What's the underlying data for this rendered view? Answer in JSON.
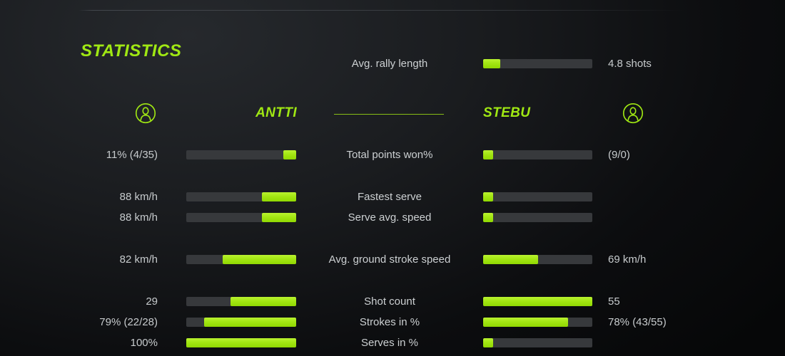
{
  "accent_color": "#a0e813",
  "track_color": "#37393c",
  "title": "STATISTICS",
  "avg_rally": {
    "label": "Avg. rally length",
    "value": "4.8 shots",
    "fill_pct": 16
  },
  "players": {
    "left_name": "ANTTI",
    "right_name": "STEBU"
  },
  "rows": [
    {
      "label": "Total points won%",
      "left_value": "11% (4/35)",
      "left_fill": 12,
      "right_value": "(9/0)",
      "right_fill": 9,
      "gap_before": false
    },
    {
      "label": "Fastest serve",
      "left_value": "88 km/h",
      "left_fill": 31,
      "right_value": "",
      "right_fill": 9,
      "gap_before": true
    },
    {
      "label": "Serve avg. speed",
      "left_value": "88 km/h",
      "left_fill": 31,
      "right_value": "",
      "right_fill": 9,
      "gap_before": false
    },
    {
      "label": "Avg. ground stroke speed",
      "left_value": "82 km/h",
      "left_fill": 67,
      "right_value": "69 km/h",
      "right_fill": 50,
      "gap_before": true
    },
    {
      "label": "Shot count",
      "left_value": "29",
      "left_fill": 60,
      "right_value": "55",
      "right_fill": 100,
      "gap_before": true
    },
    {
      "label": "Strokes in %",
      "left_value": "79% (22/28)",
      "left_fill": 84,
      "right_value": "78% (43/55)",
      "right_fill": 78,
      "gap_before": false
    },
    {
      "label": "Serves in %",
      "left_value": "100%",
      "left_fill": 100,
      "right_value": "",
      "right_fill": 9,
      "gap_before": false
    }
  ]
}
